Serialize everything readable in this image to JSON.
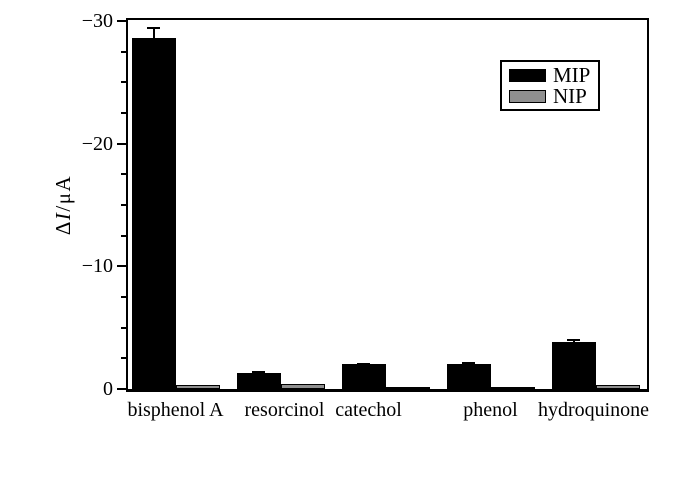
{
  "figure": {
    "background": "#ffffff"
  },
  "chart_data": {
    "type": "bar",
    "title": "",
    "categories": [
      "bisphenol A",
      "resorcinol",
      "catechol",
      "phenol",
      "hydroquinone"
    ],
    "series": [
      {
        "name": "MIP",
        "color": "#000000",
        "values": [
          -28.6,
          -1.3,
          -2.0,
          -2.0,
          -3.8
        ],
        "errors": [
          0.9,
          0.15,
          0.12,
          0.2,
          0.25
        ]
      },
      {
        "name": "NIP",
        "color": "#8f8f8f",
        "values": [
          -0.3,
          -0.4,
          -0.15,
          -0.1,
          -0.3
        ],
        "errors": [
          0,
          0,
          0,
          0,
          0
        ]
      }
    ],
    "ylabel": "ΔI/μA",
    "ylabel_parts": {
      "delta": "Δ",
      "quantity": "I",
      "separator": "/",
      "unit": "μA"
    },
    "ylim": [
      0,
      -30
    ],
    "yticks": [
      0,
      -10,
      -20,
      -30
    ],
    "ytick_labels": [
      "0",
      "−10",
      "−20",
      "−30"
    ],
    "minor_tick_interval": 2.5,
    "grid": false,
    "legend": {
      "position": "upper-right",
      "entries": [
        "MIP",
        "NIP"
      ]
    }
  }
}
